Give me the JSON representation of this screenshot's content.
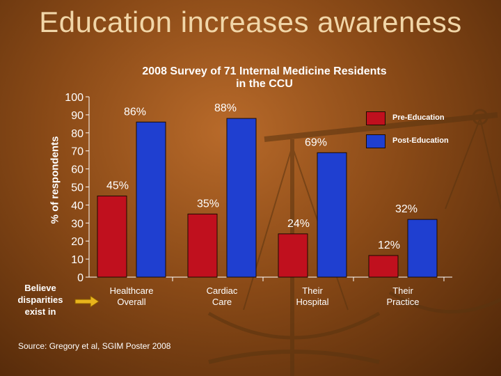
{
  "title": "Education increases awareness",
  "chart_data": {
    "type": "bar",
    "title": "2008 Survey of 71 Internal Medicine Residents in the CCU",
    "ylabel": "% of respondents",
    "xlabel": "Believe disparities exist in",
    "categories": [
      "Healthcare Overall",
      "Cardiac Care",
      "Their Hospital",
      "Their Practice"
    ],
    "series": [
      {
        "name": "Pre-Education",
        "values": [
          45,
          35,
          24,
          12
        ],
        "color": "#c0101e"
      },
      {
        "name": "Post-Education",
        "values": [
          86,
          88,
          69,
          32
        ],
        "color": "#1f3fd0"
      }
    ],
    "data_labels": {
      "Pre-Education": [
        "45%",
        "35%",
        "24%",
        "12%"
      ],
      "Post-Education": [
        "86%",
        "88%",
        "69%",
        "32%"
      ]
    },
    "yticks": [
      0,
      10,
      20,
      30,
      40,
      50,
      60,
      70,
      80,
      90,
      100
    ],
    "ylim": [
      0,
      100
    ],
    "grid": false,
    "legend_position": "top-right"
  },
  "source": "Source:  Gregory et al, SGIM Poster 2008"
}
